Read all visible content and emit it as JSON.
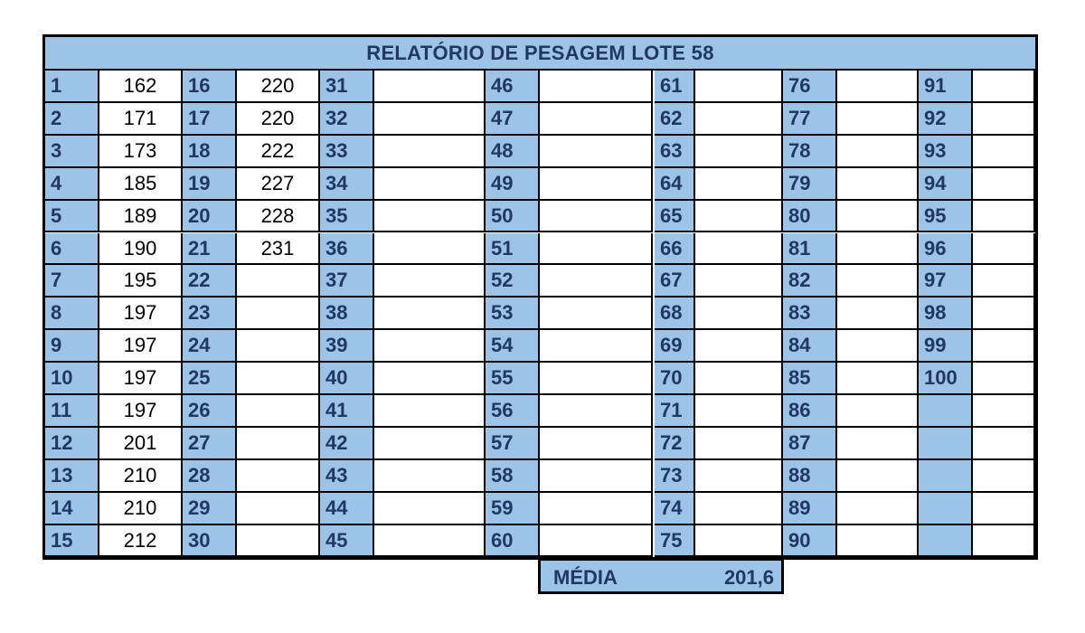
{
  "title": "RELATÓRIO DE PESAGEM LOTE 58",
  "weights": {
    "1": "162",
    "2": "171",
    "3": "173",
    "4": "185",
    "5": "189",
    "6": "190",
    "7": "195",
    "8": "197",
    "9": "197",
    "10": "197",
    "11": "197",
    "12": "201",
    "13": "210",
    "14": "210",
    "15": "212",
    "16": "220",
    "17": "220",
    "18": "222",
    "19": "227",
    "20": "228",
    "21": "231"
  },
  "last_number": 100,
  "summary": {
    "label": "MÉDIA",
    "value": "201,6"
  },
  "colors": {
    "header_blue": "#9dc3e6",
    "text_navy": "#1f3864"
  }
}
